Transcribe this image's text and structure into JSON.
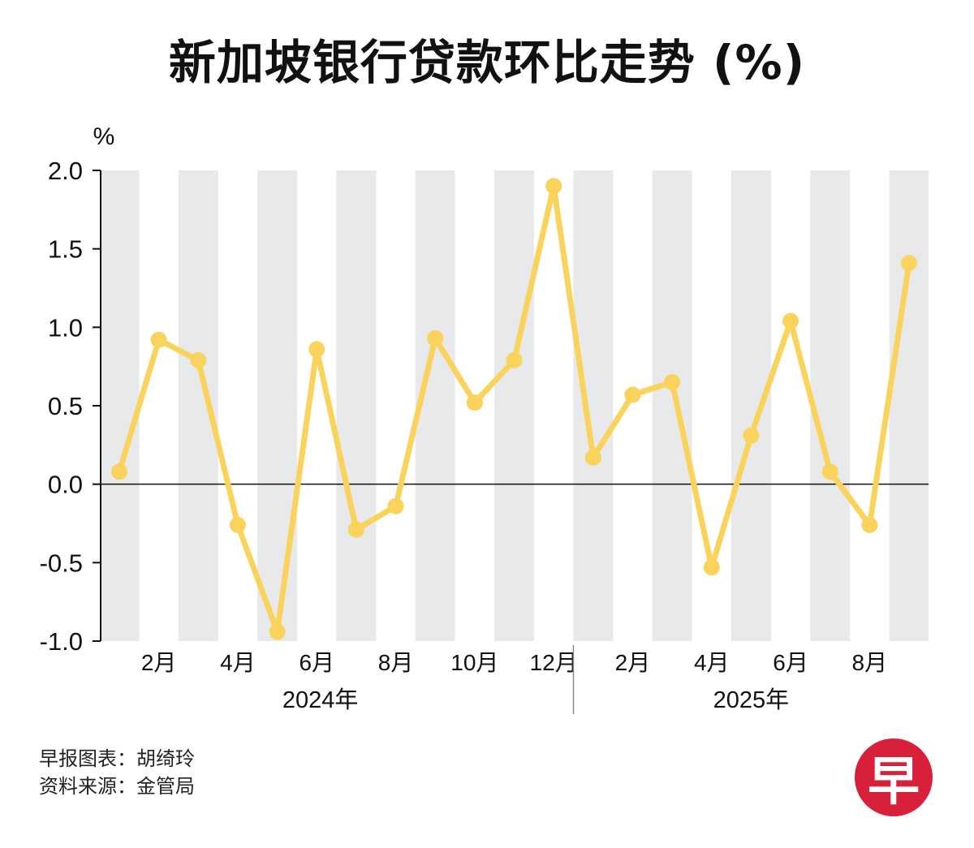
{
  "title": "新加坡银行贷款环比走势 (%)",
  "credits": {
    "line1": "早报图表：胡绮玲",
    "line2": "资料来源：金管局"
  },
  "logo_text": "早",
  "colors": {
    "line": "#f9d35c",
    "band": "#e8e9eb",
    "axis": "#111111"
  },
  "chart_data": {
    "type": "line",
    "title": "新加坡银行贷款环比走势 (%)",
    "ylabel": "%",
    "ylim": [
      -1.0,
      2.0
    ],
    "yticks": [
      "2.0",
      "1.5",
      "1.0",
      "0.5",
      "0.0",
      "-0.5",
      "-1.0"
    ],
    "ytick_values": [
      2.0,
      1.5,
      1.0,
      0.5,
      0.0,
      -0.5,
      -1.0
    ],
    "x_labels": [
      {
        "index": 1,
        "label": "2月"
      },
      {
        "index": 3,
        "label": "4月"
      },
      {
        "index": 5,
        "label": "6月"
      },
      {
        "index": 7,
        "label": "8月"
      },
      {
        "index": 9,
        "label": "10月"
      },
      {
        "index": 11,
        "label": "12月"
      },
      {
        "index": 13,
        "label": "2月"
      },
      {
        "index": 15,
        "label": "4月"
      },
      {
        "index": 17,
        "label": "6月"
      },
      {
        "index": 19,
        "label": "8月"
      }
    ],
    "years": [
      {
        "label": "2024年",
        "from": 0,
        "to": 11
      },
      {
        "label": "2025年",
        "from": 12,
        "to": 20
      }
    ],
    "series": [
      {
        "name": "环比",
        "values": [
          0.08,
          0.92,
          0.79,
          -0.26,
          -0.94,
          0.86,
          -0.29,
          -0.14,
          0.93,
          0.52,
          0.79,
          1.9,
          0.17,
          0.57,
          0.65,
          -0.53,
          0.31,
          1.04,
          0.08,
          -0.26,
          1.41
        ]
      }
    ]
  }
}
